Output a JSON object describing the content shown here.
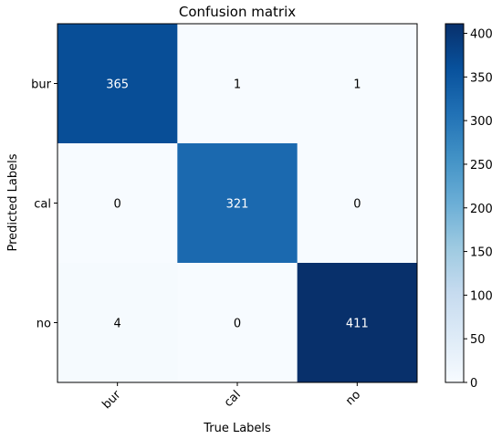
{
  "chart_data": {
    "type": "heatmap",
    "title": "Confusion matrix",
    "xlabel": "True Labels",
    "ylabel": "Predicted Labels",
    "x_categories": [
      "bur",
      "cal",
      "no"
    ],
    "y_categories": [
      "bur",
      "cal",
      "no"
    ],
    "values": [
      [
        365,
        1,
        1
      ],
      [
        0,
        321,
        0
      ],
      [
        4,
        0,
        411
      ]
    ],
    "colorbar": {
      "min": 0,
      "max": 411,
      "ticks": [
        "0",
        "50",
        "100",
        "150",
        "200",
        "250",
        "300",
        "350",
        "400"
      ],
      "colormap": "Blues"
    },
    "grid": false
  }
}
